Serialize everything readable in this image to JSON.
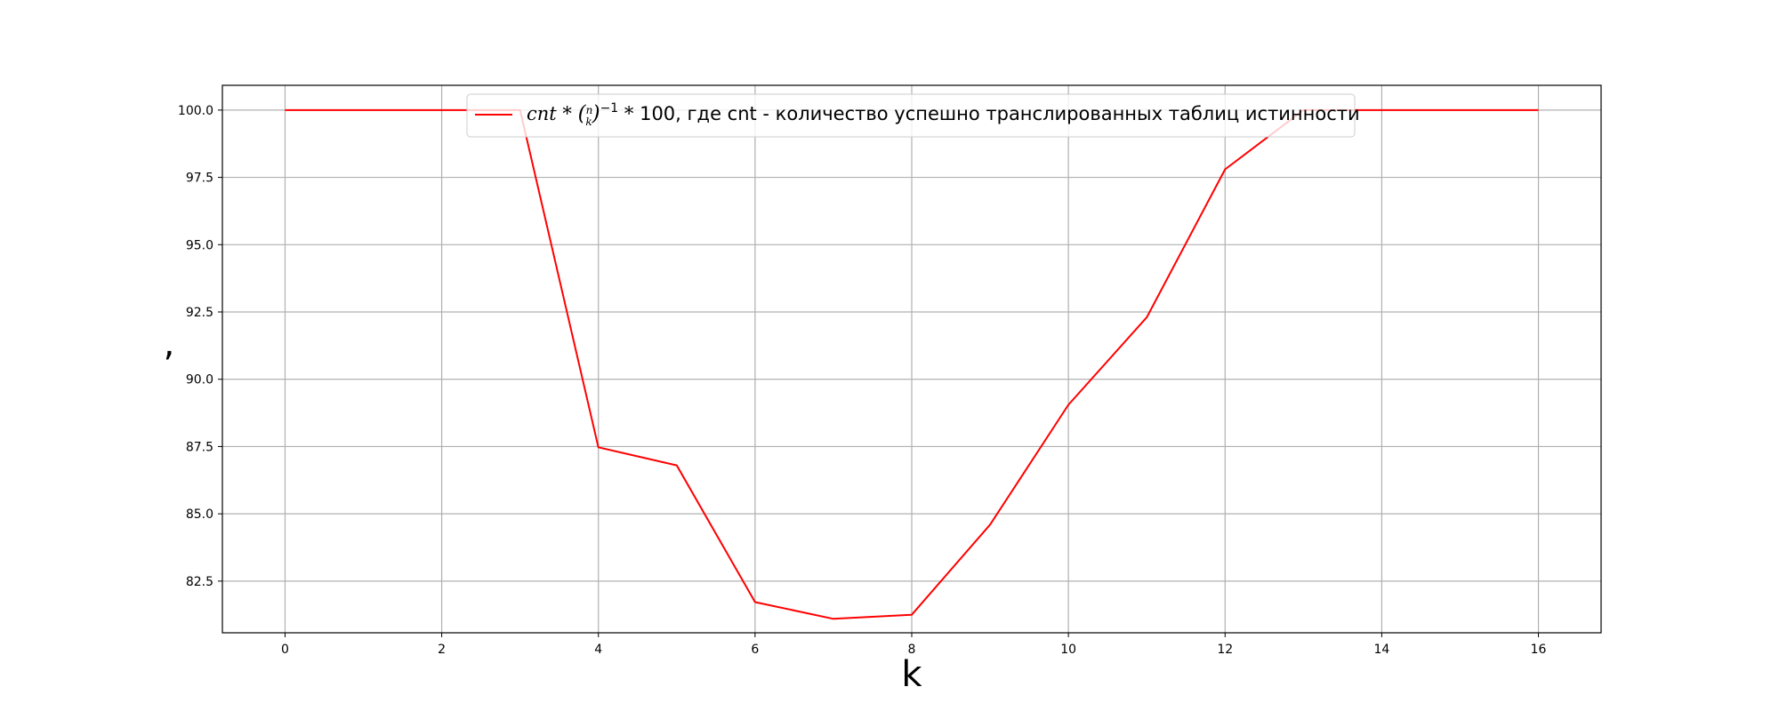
{
  "chart_data": {
    "type": "line",
    "title": "",
    "xlabel": "k",
    "ylabel": ",",
    "xlim": [
      -0.8,
      16.8
    ],
    "ylim": [
      80.58,
      100.92
    ],
    "x_ticks": [
      "0",
      "2",
      "4",
      "6",
      "8",
      "10",
      "12",
      "14",
      "16"
    ],
    "y_ticks": [
      "82.5",
      "85.0",
      "87.5",
      "90.0",
      "92.5",
      "95.0",
      "97.5",
      "100.0"
    ],
    "grid": true,
    "legend_position": "top-center",
    "series": [
      {
        "name_math": "cnt * (n k)^{-1} * 100",
        "name_math_lead": "cnt",
        "name_math_binom_top": "n",
        "name_math_binom_bottom": "k",
        "name_math_exp": "−1",
        "name_text": "100, где cnt - количество успешно транслированных таблиц истинности",
        "color": "#ff0000",
        "x": [
          0,
          1,
          2,
          3,
          4,
          5,
          6,
          7,
          8,
          9,
          10,
          11,
          12,
          13,
          14,
          15,
          16
        ],
        "values": [
          100.0,
          100.0,
          100.0,
          100.0,
          87.47,
          86.8,
          81.72,
          81.1,
          81.25,
          84.6,
          89.05,
          92.3,
          97.8,
          100.0,
          100.0,
          100.0,
          100.0
        ]
      }
    ]
  }
}
